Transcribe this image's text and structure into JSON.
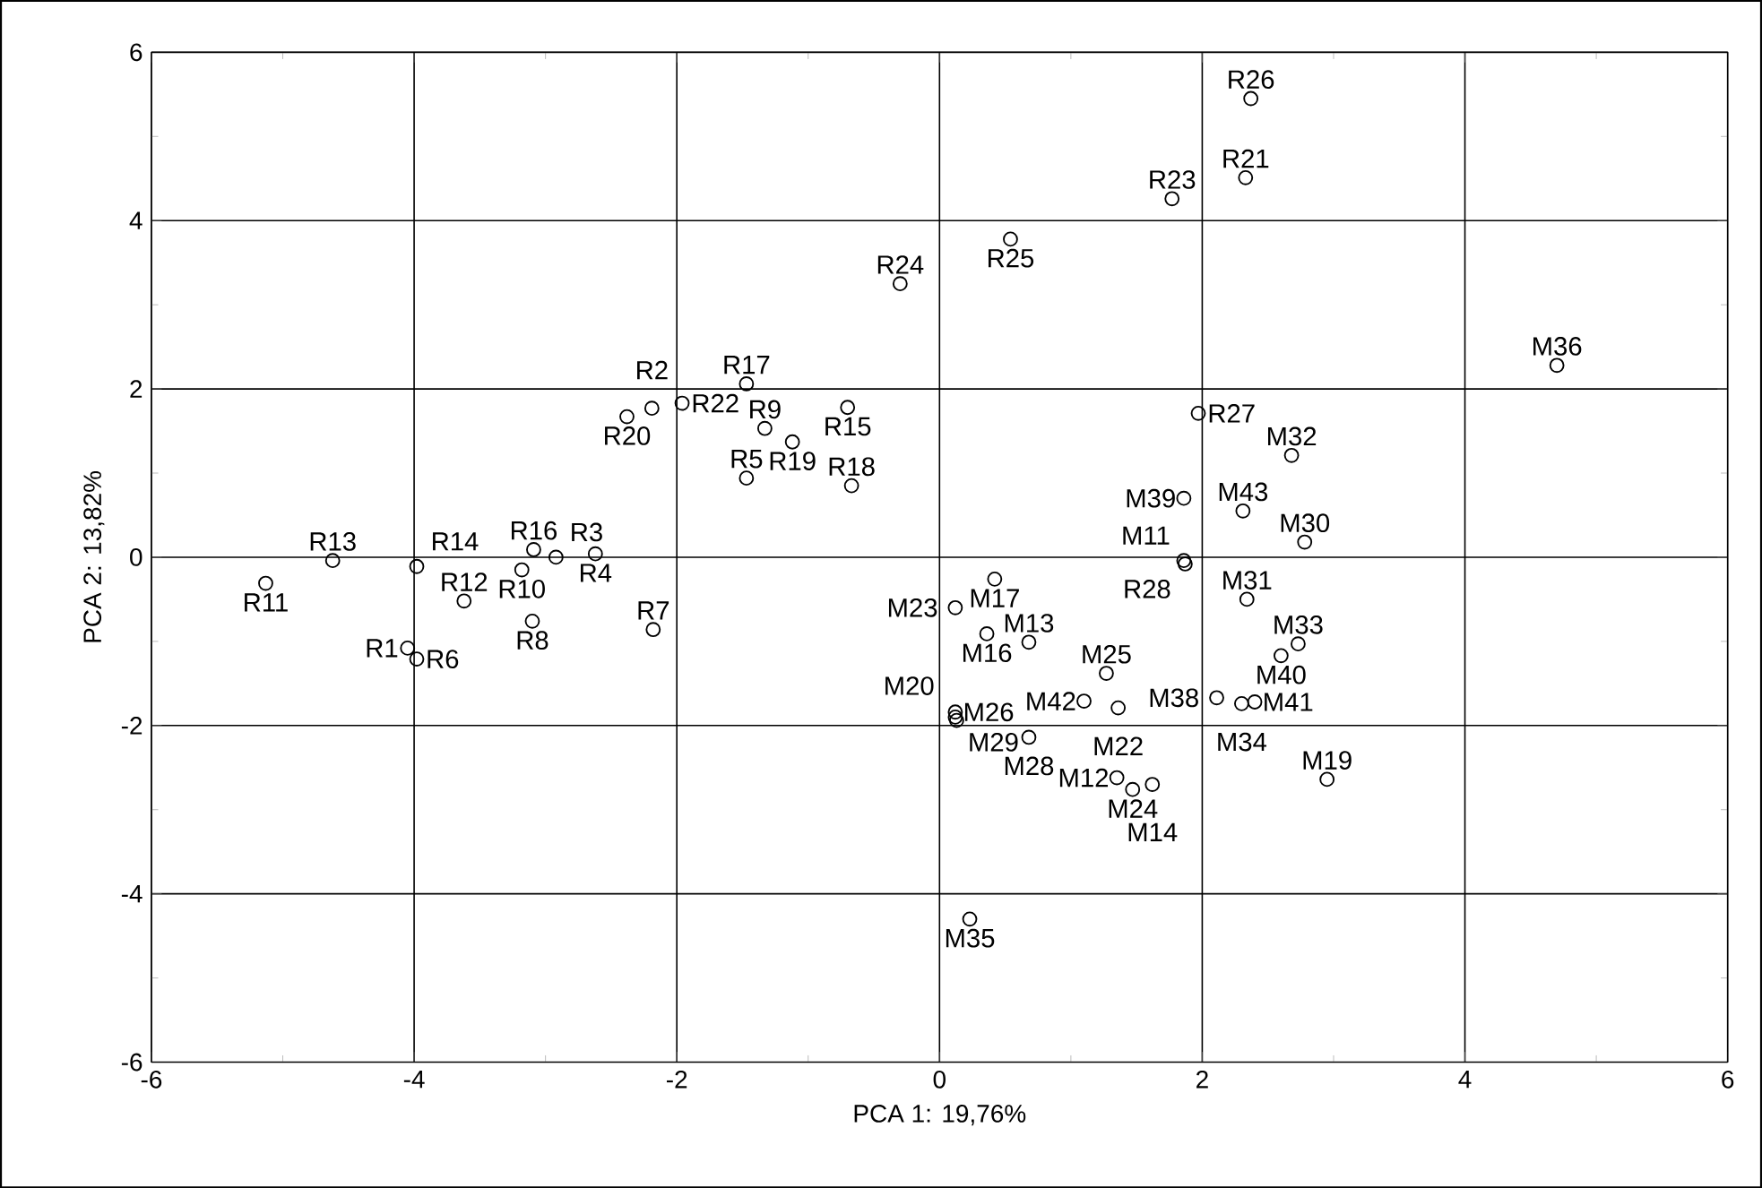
{
  "chart_data": {
    "type": "scatter",
    "xlabel": "PCA 1: 19,76%",
    "ylabel": "PCA 2: 13,82%",
    "xlim": [
      -6,
      6
    ],
    "ylim": [
      -6,
      6
    ],
    "xticks": [
      -6,
      -4,
      -2,
      0,
      2,
      4,
      6
    ],
    "yticks": [
      -6,
      -4,
      -2,
      0,
      2,
      4,
      6
    ],
    "grid": true,
    "marker": "circle",
    "series": [
      {
        "color": "#000000",
        "x": [
          -5.13,
          -4.62,
          -3.98,
          -3.62,
          -4.05,
          -3.98,
          -3.18,
          -3.09,
          -2.92,
          -3.1,
          -2.62,
          -2.18,
          -2.38,
          -2.19,
          -1.96,
          -1.47,
          -1.47,
          -1.33,
          -1.12,
          -0.7,
          -0.67,
          -0.3,
          0.54,
          2.37,
          2.33,
          1.77,
          1.97,
          2.68,
          1.86,
          2.31,
          2.78,
          1.86,
          1.87,
          2.34,
          2.6,
          2.73,
          2.11,
          2.3,
          2.4,
          0.42,
          0.12,
          0.36,
          0.68,
          1.27,
          1.1,
          1.36,
          0.12,
          0.12,
          0.13,
          0.68,
          1.35,
          1.47,
          1.62,
          2.95,
          0.23,
          4.7
        ],
        "values": [
          -0.31,
          -0.04,
          -0.11,
          -0.52,
          -1.08,
          -1.21,
          -0.15,
          0.09,
          0.0,
          -0.76,
          0.04,
          -0.86,
          1.67,
          1.77,
          1.83,
          2.06,
          0.94,
          1.53,
          1.37,
          1.78,
          0.85,
          3.25,
          3.78,
          5.45,
          4.51,
          4.26,
          1.71,
          1.21,
          0.7,
          0.55,
          0.18,
          -0.04,
          -0.08,
          -0.5,
          -1.17,
          -1.03,
          -1.67,
          -1.74,
          -1.72,
          -0.26,
          -0.6,
          -0.91,
          -1.01,
          -1.38,
          -1.71,
          -1.79,
          -1.84,
          -1.9,
          -1.94,
          -2.14,
          -2.62,
          -2.76,
          -2.7,
          -2.64,
          -4.3,
          2.28
        ]
      }
    ],
    "annotations": [
      {
        "text": "R11",
        "x": -5.13,
        "y": -0.31
      },
      {
        "text": "R13",
        "x": -4.62,
        "y": -0.04
      },
      {
        "text": "R14",
        "x": -3.98,
        "y": -0.11
      },
      {
        "text": "R12",
        "x": -3.62,
        "y": -0.52
      },
      {
        "text": "R1",
        "x": -4.05,
        "y": -1.08
      },
      {
        "text": "R6",
        "x": -3.98,
        "y": -1.21
      },
      {
        "text": "R10",
        "x": -3.18,
        "y": -0.15
      },
      {
        "text": "R16",
        "x": -3.09,
        "y": 0.09
      },
      {
        "text": "R3",
        "x": -2.92,
        "y": 0.0
      },
      {
        "text": "R8",
        "x": -3.1,
        "y": -0.76
      },
      {
        "text": "R4",
        "x": -2.62,
        "y": 0.04
      },
      {
        "text": "R7",
        "x": -2.18,
        "y": -0.86
      },
      {
        "text": "R20",
        "x": -2.38,
        "y": 1.67
      },
      {
        "text": "R2",
        "x": -2.19,
        "y": 1.77
      },
      {
        "text": "R22",
        "x": -1.96,
        "y": 1.83
      },
      {
        "text": "R17",
        "x": -1.47,
        "y": 2.06
      },
      {
        "text": "R5",
        "x": -1.47,
        "y": 0.94
      },
      {
        "text": "R9",
        "x": -1.33,
        "y": 1.53
      },
      {
        "text": "R19",
        "x": -1.12,
        "y": 1.37
      },
      {
        "text": "R15",
        "x": -0.7,
        "y": 1.78
      },
      {
        "text": "R18",
        "x": -0.67,
        "y": 0.85
      },
      {
        "text": "R24",
        "x": -0.3,
        "y": 3.25
      },
      {
        "text": "R25",
        "x": 0.54,
        "y": 3.78
      },
      {
        "text": "R26",
        "x": 2.37,
        "y": 5.45
      },
      {
        "text": "R21",
        "x": 2.33,
        "y": 4.51
      },
      {
        "text": "R23",
        "x": 1.77,
        "y": 4.26
      },
      {
        "text": "R27",
        "x": 1.97,
        "y": 1.71
      },
      {
        "text": "M32",
        "x": 2.68,
        "y": 1.21
      },
      {
        "text": "M39",
        "x": 1.86,
        "y": 0.7
      },
      {
        "text": "M43",
        "x": 2.31,
        "y": 0.55
      },
      {
        "text": "M30",
        "x": 2.78,
        "y": 0.18
      },
      {
        "text": "M11",
        "x": 1.86,
        "y": -0.04
      },
      {
        "text": "R28",
        "x": 1.87,
        "y": -0.08
      },
      {
        "text": "M31",
        "x": 2.34,
        "y": -0.5
      },
      {
        "text": "M40",
        "x": 2.6,
        "y": -1.17
      },
      {
        "text": "M33",
        "x": 2.73,
        "y": -1.03
      },
      {
        "text": "M38",
        "x": 2.11,
        "y": -1.67
      },
      {
        "text": "M34",
        "x": 2.3,
        "y": -1.74
      },
      {
        "text": "M41",
        "x": 2.4,
        "y": -1.72
      },
      {
        "text": "M17",
        "x": 0.42,
        "y": -0.26
      },
      {
        "text": "M23",
        "x": 0.12,
        "y": -0.6
      },
      {
        "text": "M16",
        "x": 0.36,
        "y": -0.91
      },
      {
        "text": "M13",
        "x": 0.68,
        "y": -1.01
      },
      {
        "text": "M25",
        "x": 1.27,
        "y": -1.38
      },
      {
        "text": "M42",
        "x": 1.1,
        "y": -1.71
      },
      {
        "text": "M22",
        "x": 1.36,
        "y": -1.79
      },
      {
        "text": "M26",
        "x": 0.12,
        "y": -1.84
      },
      {
        "text": "M29",
        "x": 0.12,
        "y": -1.9
      },
      {
        "text": "M20",
        "x": 0.13,
        "y": -1.94
      },
      {
        "text": "M28",
        "x": 0.68,
        "y": -2.14
      },
      {
        "text": "M12",
        "x": 1.35,
        "y": -2.62
      },
      {
        "text": "M24",
        "x": 1.47,
        "y": -2.76
      },
      {
        "text": "M14",
        "x": 1.62,
        "y": -2.7
      },
      {
        "text": "M19",
        "x": 2.95,
        "y": -2.64
      },
      {
        "text": "M35",
        "x": 0.23,
        "y": -4.3
      },
      {
        "text": "M36",
        "x": 4.7,
        "y": 2.28
      }
    ]
  }
}
